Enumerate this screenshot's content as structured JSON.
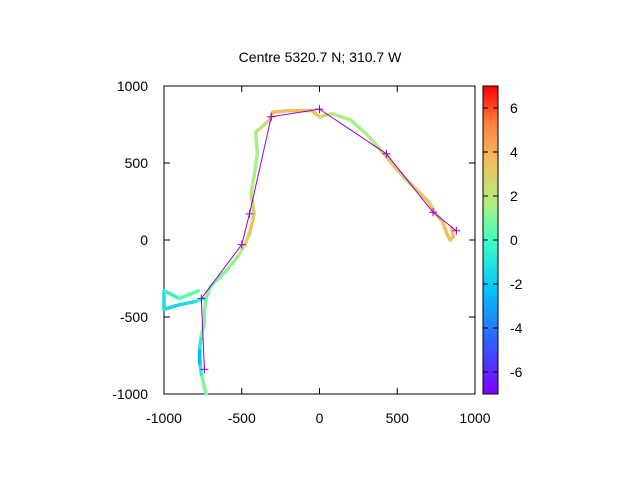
{
  "chart_data": {
    "type": "scatter",
    "title": "Centre 5320.7 N; 310.7  W",
    "xlabel": "",
    "ylabel": "",
    "xlim": [
      -1000,
      1000
    ],
    "ylim": [
      -1000,
      1000
    ],
    "x_ticks": [
      -1000,
      -500,
      0,
      500,
      1000
    ],
    "y_ticks": [
      -1000,
      -500,
      0,
      500,
      1000
    ],
    "x_tick_labels": [
      "-1000",
      "-500",
      "0",
      "500",
      "1000"
    ],
    "y_tick_labels": [
      "-1000",
      "-500",
      "0",
      "500",
      "1000"
    ],
    "grid": false,
    "colorbar": {
      "range": [
        -7,
        7
      ],
      "ticks": [
        -6,
        -4,
        -2,
        0,
        2,
        4,
        6
      ],
      "tick_labels": [
        "-6",
        "-4",
        "-2",
        "0",
        "2",
        "4",
        "6"
      ],
      "palette": "rainbow (purple → blue → cyan → green → yellow → orange → red)"
    },
    "track": [
      {
        "x": -730,
        "y": -1000,
        "c": 1.0
      },
      {
        "x": -760,
        "y": -870,
        "c": 1.0
      },
      {
        "x": -770,
        "y": -800,
        "c": -2.5
      },
      {
        "x": -770,
        "y": -700,
        "c": -2.5
      },
      {
        "x": -760,
        "y": -620,
        "c": 1.0
      },
      {
        "x": -740,
        "y": -540,
        "c": 1.0
      },
      {
        "x": -740,
        "y": -460,
        "c": 1.0
      },
      {
        "x": -730,
        "y": -380,
        "c": 1.0
      },
      {
        "x": -700,
        "y": -300,
        "c": 1.0
      },
      {
        "x": -600,
        "y": -200,
        "c": 1.0
      },
      {
        "x": -520,
        "y": -100,
        "c": 1.5
      },
      {
        "x": -480,
        "y": -30,
        "c": 2.0
      },
      {
        "x": -450,
        "y": 40,
        "c": 3.5
      },
      {
        "x": -420,
        "y": 170,
        "c": 3.5
      },
      {
        "x": -440,
        "y": 300,
        "c": 2.0
      },
      {
        "x": -420,
        "y": 420,
        "c": 1.5
      },
      {
        "x": -400,
        "y": 560,
        "c": 1.5
      },
      {
        "x": -410,
        "y": 700,
        "c": 1.5
      },
      {
        "x": -320,
        "y": 780,
        "c": 3.0
      },
      {
        "x": -300,
        "y": 830,
        "c": 3.5
      },
      {
        "x": -200,
        "y": 840,
        "c": 3.5
      },
      {
        "x": -50,
        "y": 840,
        "c": 3.5
      },
      {
        "x": 0,
        "y": 800,
        "c": 3.5
      },
      {
        "x": 80,
        "y": 820,
        "c": 2.0
      },
      {
        "x": 200,
        "y": 780,
        "c": 1.5
      },
      {
        "x": 300,
        "y": 690,
        "c": 1.5
      },
      {
        "x": 380,
        "y": 600,
        "c": 2.0
      },
      {
        "x": 430,
        "y": 540,
        "c": 3.0
      },
      {
        "x": 480,
        "y": 480,
        "c": 3.5
      },
      {
        "x": 550,
        "y": 400,
        "c": 3.0
      },
      {
        "x": 620,
        "y": 330,
        "c": 3.0
      },
      {
        "x": 700,
        "y": 250,
        "c": 3.5
      },
      {
        "x": 740,
        "y": 180,
        "c": 3.5
      },
      {
        "x": 790,
        "y": 120,
        "c": 3.5
      },
      {
        "x": 820,
        "y": 40,
        "c": 3.5
      },
      {
        "x": 840,
        "y": 0,
        "c": 3.5
      },
      {
        "x": 860,
        "y": 20,
        "c": 3.5
      },
      {
        "x": 850,
        "y": 80,
        "c": 3.5
      }
    ],
    "track_loop": [
      {
        "x": -740,
        "y": -380,
        "c": 1.0
      },
      {
        "x": -800,
        "y": -400,
        "c": -1.0
      },
      {
        "x": -900,
        "y": -420,
        "c": -1.5
      },
      {
        "x": -1000,
        "y": -450,
        "c": -1.5
      },
      {
        "x": -1000,
        "y": -330,
        "c": -1.0
      },
      {
        "x": -900,
        "y": -380,
        "c": 0.0
      },
      {
        "x": -780,
        "y": -330,
        "c": 1.0
      }
    ],
    "route_points": [
      {
        "x": -740,
        "y": -840
      },
      {
        "x": -760,
        "y": -380
      },
      {
        "x": -500,
        "y": -30
      },
      {
        "x": -450,
        "y": 170
      },
      {
        "x": -310,
        "y": 800
      },
      {
        "x": 0,
        "y": 850
      },
      {
        "x": 430,
        "y": 560
      },
      {
        "x": 730,
        "y": 180
      },
      {
        "x": 880,
        "y": 60
      }
    ],
    "route_color": "#9400d3"
  }
}
